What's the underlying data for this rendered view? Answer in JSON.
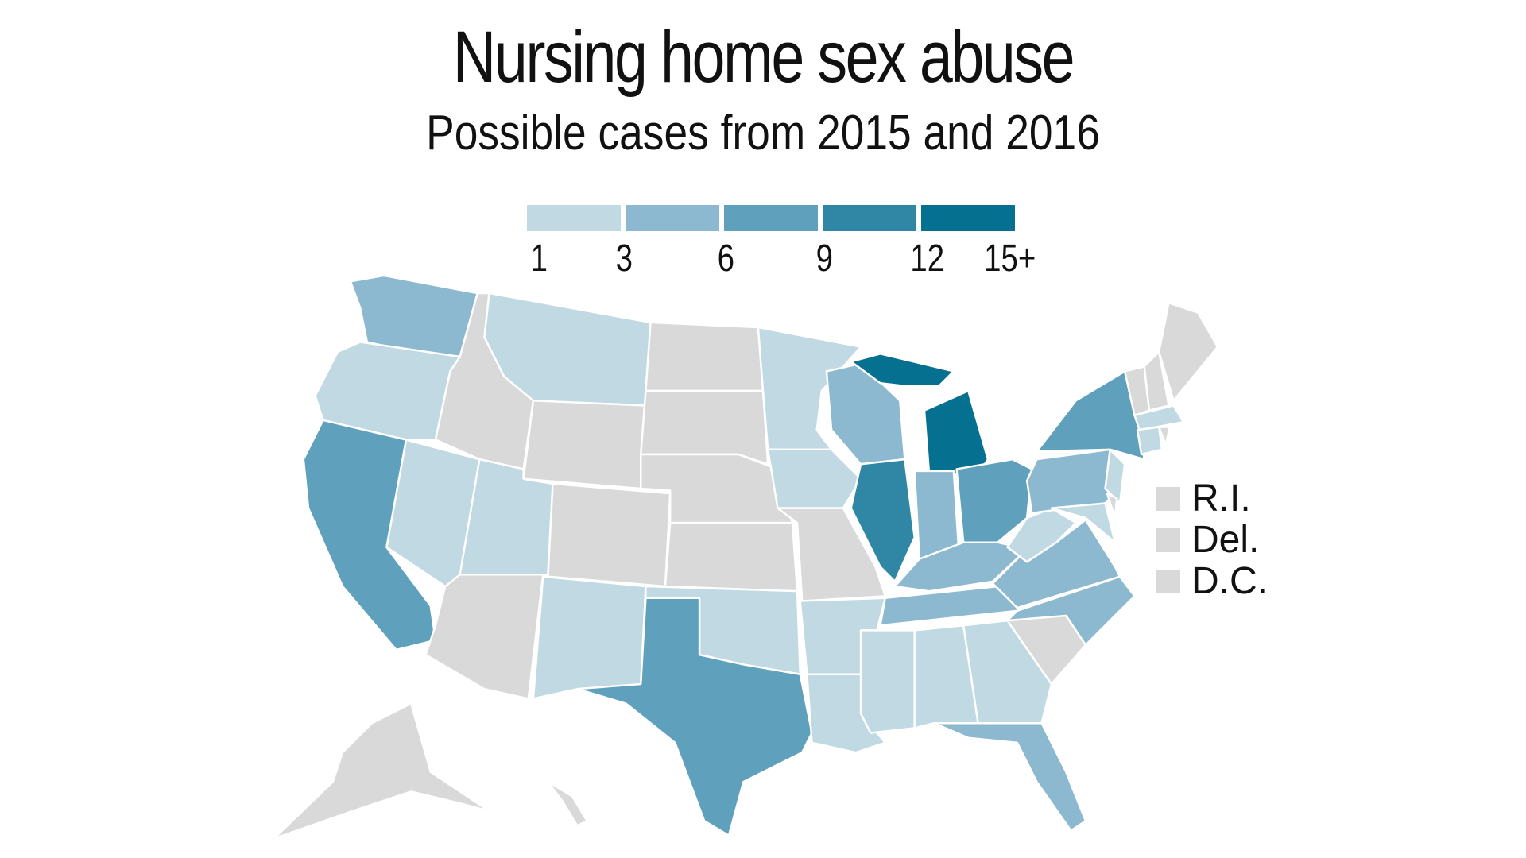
{
  "title": "Nursing home sex abuse",
  "subtitle": "Possible cases from 2015 and 2016",
  "legend": {
    "colors": [
      "#c0d9e3",
      "#8cb9cf",
      "#5fa0bd",
      "#2f86a5",
      "#05708f"
    ],
    "ticks": [
      "1",
      "3",
      "6",
      "9",
      "12",
      "15+"
    ]
  },
  "no_data_color": "#d9d9d9",
  "small_states": [
    {
      "label": "R.I.",
      "level": 0
    },
    {
      "label": "Del.",
      "level": 0
    },
    {
      "label": "D.C.",
      "level": 0
    }
  ],
  "state_levels": {
    "WA": 2,
    "OR": 1,
    "CA": 3,
    "NV": 1,
    "ID": 0,
    "MT": 1,
    "WY": 0,
    "UT": 1,
    "AZ": 0,
    "CO": 0,
    "NM": 1,
    "ND": 0,
    "SD": 0,
    "NE": 0,
    "KS": 0,
    "OK": 1,
    "TX": 3,
    "MN": 1,
    "IA": 1,
    "MO": 0,
    "AR": 1,
    "LA": 1,
    "WI": 2,
    "IL": 4,
    "MI": 5,
    "IN": 2,
    "OH": 3,
    "KY": 2,
    "TN": 2,
    "MS": 1,
    "AL": 1,
    "GA": 1,
    "FL": 2,
    "SC": 0,
    "NC": 2,
    "VA": 2,
    "WV": 1,
    "PA": 2,
    "NY": 3,
    "VT": 0,
    "NH": 0,
    "ME": 0,
    "MA": 1,
    "CT": 1,
    "NJ": 1,
    "MD": 1,
    "DE": 0,
    "RI": 0,
    "AK": 0,
    "HI": 0
  }
}
